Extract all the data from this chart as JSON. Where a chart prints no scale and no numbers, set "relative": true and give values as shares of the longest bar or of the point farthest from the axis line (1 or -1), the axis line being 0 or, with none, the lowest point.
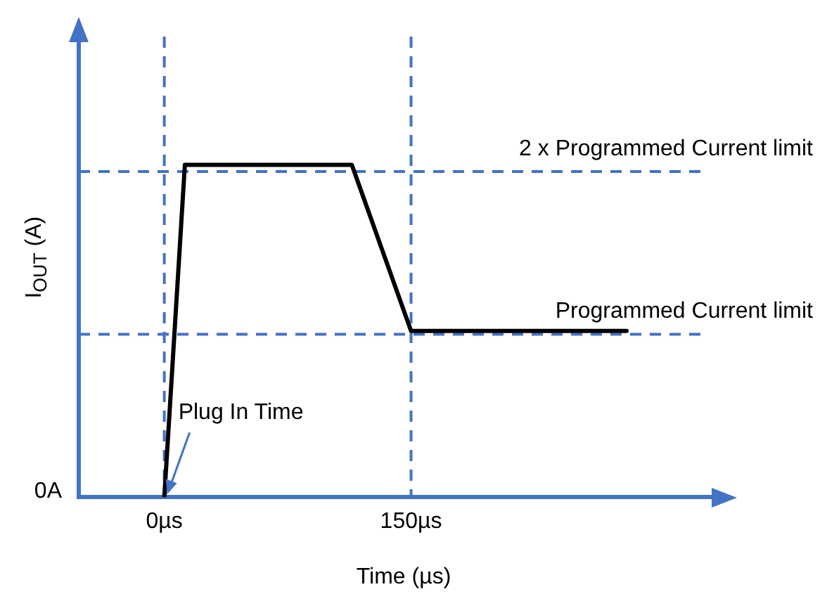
{
  "chart_data": {
    "type": "line",
    "relative": true,
    "xlabel": "Time (µs)",
    "ylabel": "I$_{OUT}$ (A)",
    "x": [
      0,
      12.5,
      114,
      150,
      281
    ],
    "series": [
      {
        "color": "#000000",
        "values": [
          0,
          1,
          1,
          0.5,
          0.5
        ]
      }
    ],
    "xlim": [
      -52,
      343
    ],
    "xticks": [
      {
        "value": 0,
        "label": "0µs"
      },
      {
        "value": 150,
        "label": "150µs"
      }
    ],
    "ref_lines": [
      {
        "axis": "x",
        "value": 0,
        "color": "#4472c4",
        "line_style": "dashed"
      },
      {
        "axis": "x",
        "value": 150,
        "color": "#4472c4",
        "line_style": "dashed"
      },
      {
        "axis": "y",
        "value": 0.98,
        "label": "2 x Programmed Current limit",
        "color": "#4472c4",
        "line_style": "dashed"
      },
      {
        "axis": "y",
        "value": 0.49,
        "label": "Programmed Current limit",
        "color": "#4472c4",
        "line_style": "dashed"
      }
    ],
    "annotations": [
      "0A",
      "Plug In Time"
    ],
    "grid": false,
    "legend": false,
    "marker": "none",
    "line_style": "solid"
  }
}
